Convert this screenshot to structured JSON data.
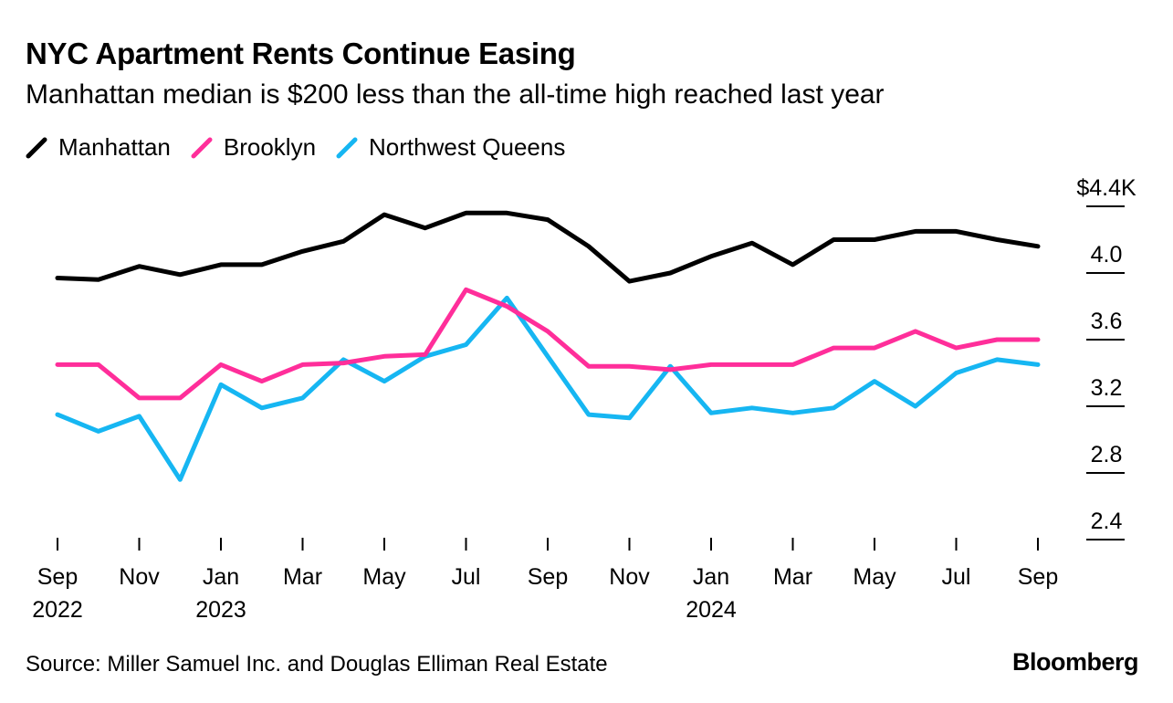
{
  "header": {
    "title": "NYC Apartment Rents Continue Easing",
    "subtitle": "Manhattan median is $200 less than the all-time high reached last year"
  },
  "footer": {
    "source": "Source: Miller Samuel Inc. and Douglas Elliman Real Estate",
    "brand": "Bloomberg"
  },
  "chart_data": {
    "type": "line",
    "title": "NYC Apartment Rents Continue Easing",
    "subtitle": "Manhattan median is $200 less than the all-time high reached last year",
    "xlabel": "",
    "ylabel": "",
    "y_unit": "thousand USD",
    "ylim": [
      2.4,
      4.4
    ],
    "grid": false,
    "legend_position": "top-left",
    "y_ticks": [
      {
        "value": 4.4,
        "label": "$4.4K"
      },
      {
        "value": 4.0,
        "label": "4.0"
      },
      {
        "value": 3.6,
        "label": "3.6"
      },
      {
        "value": 3.2,
        "label": "3.2"
      },
      {
        "value": 2.8,
        "label": "2.8"
      },
      {
        "value": 2.4,
        "label": "2.4"
      }
    ],
    "x_ticks": [
      {
        "index": 0,
        "month": "Sep",
        "year": "2022"
      },
      {
        "index": 2,
        "month": "Nov",
        "year": ""
      },
      {
        "index": 4,
        "month": "Jan",
        "year": "2023"
      },
      {
        "index": 6,
        "month": "Mar",
        "year": ""
      },
      {
        "index": 8,
        "month": "May",
        "year": ""
      },
      {
        "index": 10,
        "month": "Jul",
        "year": ""
      },
      {
        "index": 12,
        "month": "Sep",
        "year": ""
      },
      {
        "index": 14,
        "month": "Nov",
        "year": ""
      },
      {
        "index": 16,
        "month": "Jan",
        "year": "2024"
      },
      {
        "index": 18,
        "month": "Mar",
        "year": ""
      },
      {
        "index": 20,
        "month": "May",
        "year": ""
      },
      {
        "index": 22,
        "month": "Jul",
        "year": ""
      },
      {
        "index": 24,
        "month": "Sep",
        "year": ""
      }
    ],
    "categories": [
      "Sep 2022",
      "Oct 2022",
      "Nov 2022",
      "Dec 2022",
      "Jan 2023",
      "Feb 2023",
      "Mar 2023",
      "Apr 2023",
      "May 2023",
      "Jun 2023",
      "Jul 2023",
      "Aug 2023",
      "Sep 2023",
      "Oct 2023",
      "Nov 2023",
      "Dec 2023",
      "Jan 2024",
      "Feb 2024",
      "Mar 2024",
      "Apr 2024",
      "May 2024",
      "Jun 2024",
      "Jul 2024",
      "Aug 2024",
      "Sep 2024"
    ],
    "series": [
      {
        "name": "Manhattan",
        "color": "#000000",
        "values": [
          3.97,
          3.96,
          4.04,
          3.99,
          4.05,
          4.05,
          4.13,
          4.19,
          4.35,
          4.27,
          4.36,
          4.36,
          4.32,
          4.16,
          3.95,
          4.0,
          4.1,
          4.18,
          4.05,
          4.2,
          4.2,
          4.25,
          4.25,
          4.2,
          4.16
        ]
      },
      {
        "name": "Brooklyn",
        "color": "#ff2e9a",
        "values": [
          3.45,
          3.45,
          3.25,
          3.25,
          3.45,
          3.35,
          3.45,
          3.46,
          3.5,
          3.51,
          3.9,
          3.8,
          3.65,
          3.44,
          3.44,
          3.42,
          3.45,
          3.45,
          3.45,
          3.55,
          3.55,
          3.65,
          3.55,
          3.6,
          3.6
        ]
      },
      {
        "name": "Northwest Queens",
        "color": "#16b6f2",
        "values": [
          3.15,
          3.05,
          3.14,
          2.76,
          3.33,
          3.19,
          3.25,
          3.48,
          3.35,
          3.5,
          3.57,
          3.85,
          3.5,
          3.15,
          3.13,
          3.44,
          3.16,
          3.19,
          3.16,
          3.19,
          3.35,
          3.2,
          3.4,
          3.48,
          3.45
        ]
      }
    ]
  }
}
